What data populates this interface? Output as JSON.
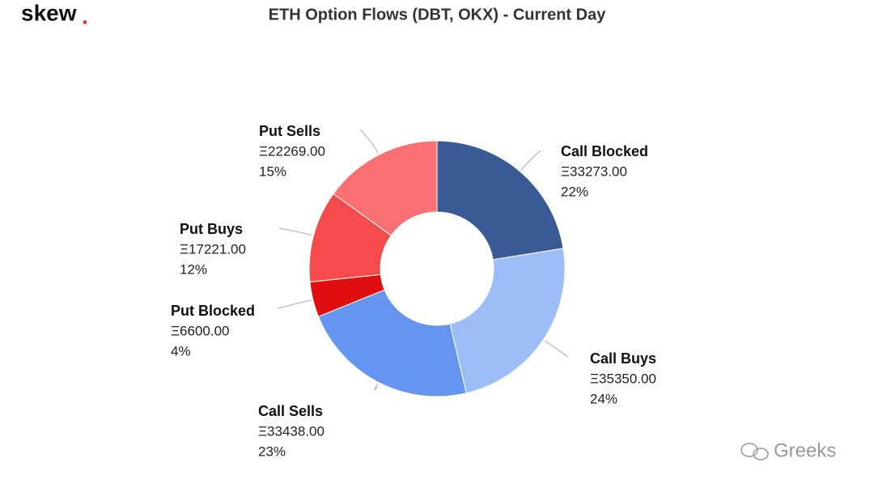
{
  "brand": "skew",
  "brand_mark": ".",
  "watermark": "Greeks",
  "chart_data": {
    "type": "pie",
    "donut": true,
    "title": "ETH Option Flows (DBT, OKX) - Current Day",
    "categories": [
      "Call Blocked",
      "Call Buys",
      "Call Sells",
      "Put Blocked",
      "Put Buys",
      "Put Sells"
    ],
    "values": [
      33273,
      35350,
      33438,
      6600,
      17221,
      22269
    ],
    "value_labels": [
      "Ξ33273.00",
      "Ξ35350.00",
      "Ξ33438.00",
      "Ξ6600.00",
      "Ξ17221.00",
      "Ξ22269.00"
    ],
    "percent_labels": [
      "22%",
      "24%",
      "23%",
      "4%",
      "12%",
      "15%"
    ],
    "colors": [
      "#3a5a93",
      "#9dbdf9",
      "#6495f0",
      "#e00f0f",
      "#f54b4b",
      "#fb7070"
    ]
  }
}
